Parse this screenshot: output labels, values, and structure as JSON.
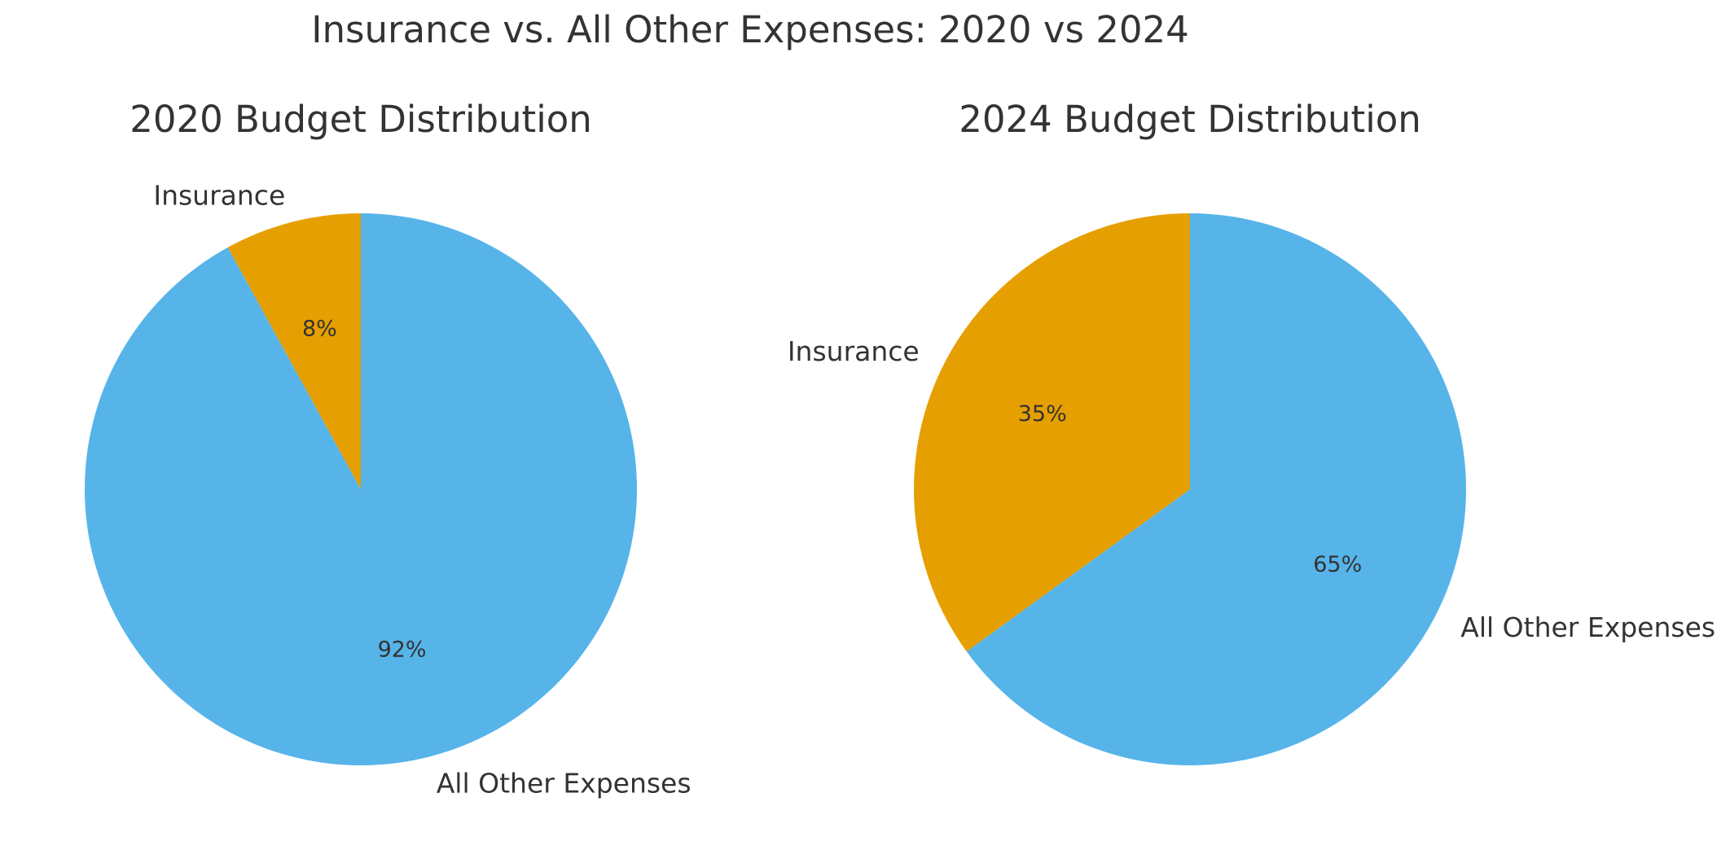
{
  "chart_data": {
    "title": "Insurance vs. All Other Expenses: 2020 vs 2024",
    "charts": [
      {
        "type": "pie",
        "title": "2020 Budget Distribution",
        "start_angle": 90,
        "direction": "counterclockwise",
        "slices": [
          {
            "label": "Insurance",
            "value": 8,
            "pct_label": "8%",
            "color": "#E69F00"
          },
          {
            "label": "All Other Expenses",
            "value": 92,
            "pct_label": "92%",
            "color": "#56B4E9"
          }
        ]
      },
      {
        "type": "pie",
        "title": "2024 Budget Distribution",
        "start_angle": 90,
        "direction": "counterclockwise",
        "slices": [
          {
            "label": "Insurance",
            "value": 35,
            "pct_label": "35%",
            "color": "#E69F00"
          },
          {
            "label": "All Other Expenses",
            "value": 65,
            "pct_label": "65%",
            "color": "#56B4E9"
          }
        ]
      }
    ]
  }
}
